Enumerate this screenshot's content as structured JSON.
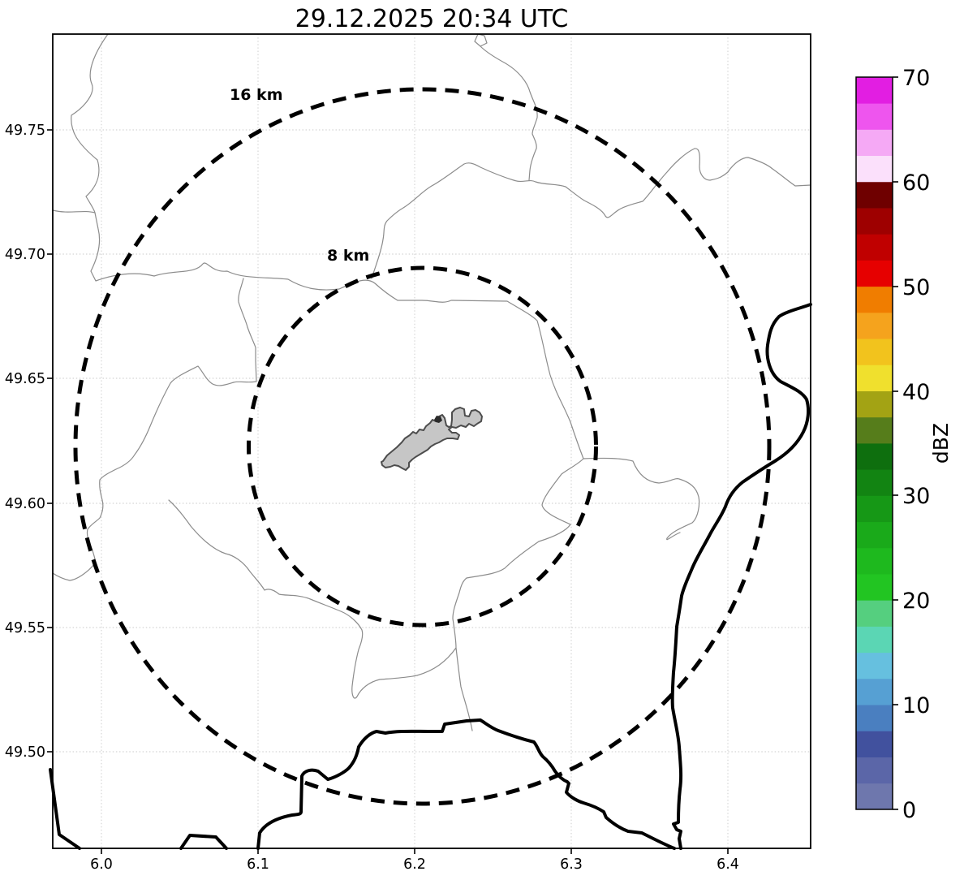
{
  "title": "29.12.2025 20:34 UTC",
  "map": {
    "x_ticks": [
      "6.0",
      "6.1",
      "6.2",
      "6.3",
      "6.4"
    ],
    "y_ticks": [
      "49.75",
      "49.70",
      "49.65",
      "49.60",
      "49.55",
      "49.50"
    ],
    "range_rings": [
      {
        "label": "16 km",
        "radius_km": 16
      },
      {
        "label": "8 km",
        "radius_km": 8
      }
    ],
    "radar_site": {
      "lon": 6.205,
      "lat": 49.623
    },
    "landmark": "airport-outline-polygon"
  },
  "colorbar": {
    "label": "dBZ",
    "tick_labels": [
      "0",
      "10",
      "20",
      "30",
      "40",
      "50",
      "60",
      "70"
    ],
    "min": 0,
    "max": 70,
    "segment_step": 2.5,
    "colors_bottom_to_top": [
      "#6e77ad",
      "#5b66a8",
      "#41519e",
      "#4a7fc0",
      "#56a0d3",
      "#66c0df",
      "#5bd6b4",
      "#55cf7f",
      "#22c522",
      "#1eb91e",
      "#1aaa1a",
      "#169816",
      "#128412",
      "#0e6f0e",
      "#567d1b",
      "#a3a314",
      "#f0e02d",
      "#f2c31d",
      "#f5a31d",
      "#f07d00",
      "#e60000",
      "#c00000",
      "#9e0000",
      "#6f0000",
      "#fbe0fb",
      "#f5a9f5",
      "#ee55ee",
      "#e21ee2"
    ]
  },
  "chart_data": {
    "type": "heatmap",
    "title": "29.12.2025 20:34 UTC",
    "xlabel": "",
    "ylabel": "",
    "xlim": [
      5.969,
      6.452
    ],
    "ylim": [
      49.461,
      49.788
    ],
    "x_ticks": [
      6.0,
      6.1,
      6.2,
      6.3,
      6.4
    ],
    "y_ticks": [
      49.5,
      49.55,
      49.6,
      49.65,
      49.7,
      49.75
    ],
    "grid": true,
    "legend_position": "right-colorbar",
    "colorbar": {
      "label": "dBZ",
      "min": 0,
      "max": 70,
      "ticks": [
        0,
        10,
        20,
        30,
        40,
        50,
        60,
        70
      ],
      "segment_step": 2.5
    },
    "radar_site": {
      "lon": 6.205,
      "lat": 49.623
    },
    "range_rings_km": [
      8,
      16
    ],
    "reflectivity_echoes": []
  }
}
